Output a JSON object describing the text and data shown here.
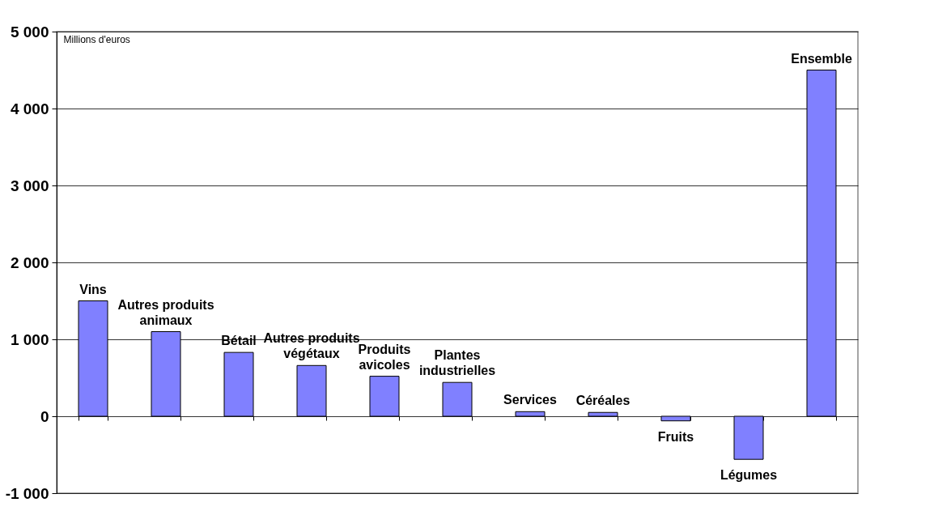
{
  "chart_data": {
    "type": "bar",
    "ylabel": "Millions d'euros",
    "categories": [
      "Vins",
      "Autres produits animaux",
      "Bétail",
      "Autres produits végétaux",
      "Produits avicoles",
      "Plantes industrielles",
      "Services",
      "Céréales",
      "Fruits",
      "Légumes",
      "Ensemble"
    ],
    "values": [
      1500,
      1100,
      830,
      660,
      520,
      440,
      60,
      50,
      -60,
      -560,
      4500
    ],
    "color": "#8080ff",
    "ylim": [
      -1000,
      5000
    ],
    "yticks": [
      {
        "value": -1000,
        "label": "-1 000"
      },
      0,
      {
        "value": 1000,
        "label": "1 000"
      },
      {
        "value": 2000,
        "label": "2 000"
      },
      {
        "value": 3000,
        "label": "3 000"
      },
      {
        "value": 4000,
        "label": "4 000"
      },
      {
        "value": 5000,
        "label": "5 000"
      }
    ],
    "grid": "y",
    "tick_labels": "y"
  }
}
